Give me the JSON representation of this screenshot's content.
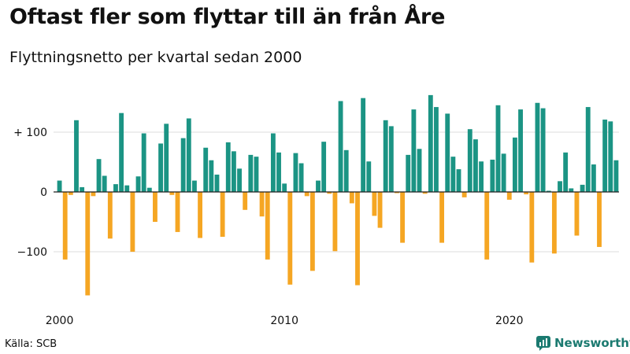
{
  "title": "Oftast fler som flyttar till än från Åre",
  "subtitle": "Flyttningsnetto per kvartal sedan 2000",
  "source": "Källa: SCB",
  "brand": "Newsworthy",
  "colors": {
    "positive": "#1b9484",
    "negative": "#f5a623",
    "grid": "#dddddd",
    "axis": "#222222",
    "brand": "#1b7a70"
  },
  "chart_data": {
    "type": "bar",
    "title": "Oftast fler som flyttar till än från Åre",
    "subtitle": "Flyttningsnetto per kvartal sedan 2000",
    "xlabel": "",
    "ylabel": "Flyttningsnetto",
    "ylim": [
      -185,
      180
    ],
    "yticks": [
      {
        "value": 100,
        "label": "+ 100"
      },
      {
        "value": 0,
        "label": "0"
      },
      {
        "value": -100,
        "label": "−100"
      }
    ],
    "xticks": [
      {
        "index": 0,
        "label": "2000"
      },
      {
        "index": 40,
        "label": "2010"
      },
      {
        "index": 80,
        "label": "2020"
      }
    ],
    "start_quarter": "2000 Q1",
    "values": [
      19,
      -113,
      -5,
      120,
      8,
      -173,
      -7,
      55,
      27,
      -78,
      13,
      132,
      11,
      -100,
      26,
      98,
      7,
      -50,
      81,
      114,
      -5,
      -67,
      90,
      123,
      19,
      -77,
      74,
      53,
      29,
      -75,
      83,
      68,
      39,
      -30,
      62,
      59,
      -41,
      -113,
      98,
      66,
      14,
      -155,
      65,
      48,
      -7,
      -132,
      19,
      84,
      -3,
      -99,
      152,
      70,
      -19,
      -156,
      157,
      51,
      -40,
      -60,
      120,
      110,
      -2,
      -85,
      62,
      138,
      72,
      -3,
      162,
      142,
      -85,
      131,
      59,
      38,
      -9,
      105,
      88,
      51,
      -113,
      54,
      145,
      64,
      -13,
      91,
      138,
      -4,
      -118,
      149,
      140,
      2,
      -103,
      18,
      66,
      6,
      -73,
      12,
      142,
      46,
      -92,
      121,
      118,
      53
    ]
  }
}
